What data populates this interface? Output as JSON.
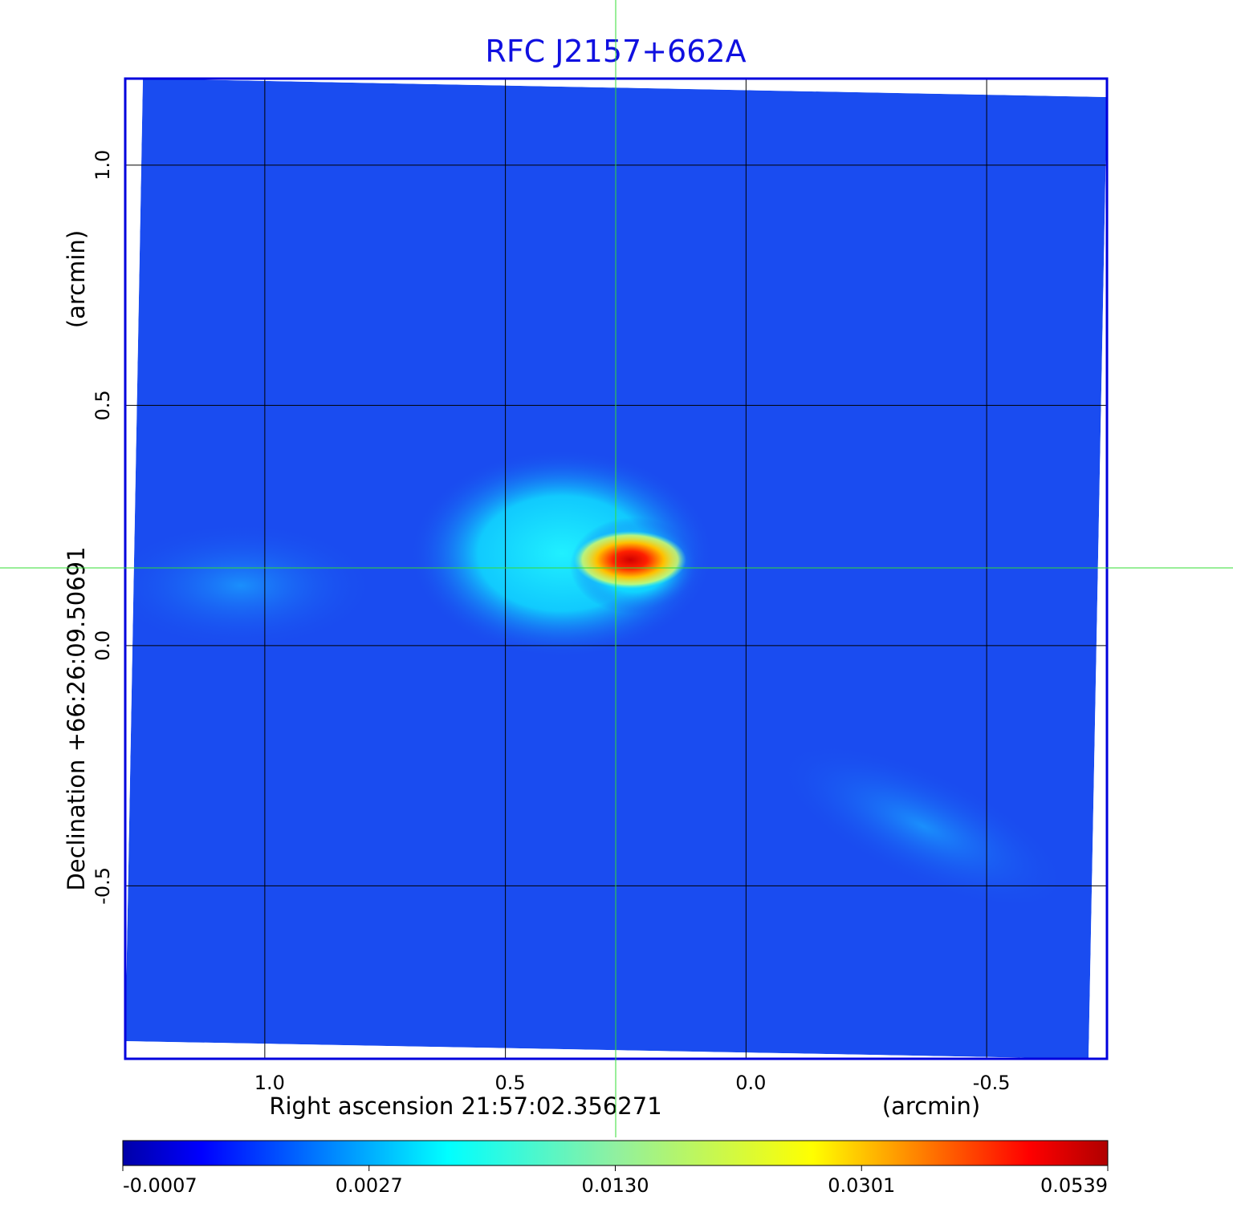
{
  "chart_data": {
    "type": "heatmap",
    "title": "RFC J2157+662A",
    "xlabel": "Right ascension  21:57:02.356271",
    "xunit": "(arcmin)",
    "ylabel": "Declination  +66:26:09.50691",
    "yunit": "(arcmin)",
    "xlim": [
      1.29,
      -0.75
    ],
    "ylim": [
      -0.86,
      1.18
    ],
    "xticks": [
      1.0,
      0.5,
      0.0,
      -0.5
    ],
    "xtick_labels": [
      "1.0",
      "0.5",
      "0.0",
      "-0.5"
    ],
    "yticks": [
      1.0,
      0.5,
      0.0,
      -0.5
    ],
    "ytick_labels": [
      "1.0",
      "0.5",
      "0.0",
      "-0.5"
    ],
    "grid": true,
    "crosshair": {
      "x": 0.27,
      "y": 0.16
    },
    "colormap": "jet",
    "colorbar": {
      "ticks": [
        "-0.0007",
        "0.0027",
        "0.0130",
        "0.0301",
        "0.0539"
      ],
      "range": [
        -0.0007,
        0.0539
      ]
    },
    "peak": {
      "x": 0.27,
      "y": 0.17,
      "value": 0.0539
    },
    "colors": {
      "title": "#1010e0",
      "frame": "#0000dd",
      "crosshair": "#33dd33",
      "background_map": "#1a4cf0"
    }
  }
}
